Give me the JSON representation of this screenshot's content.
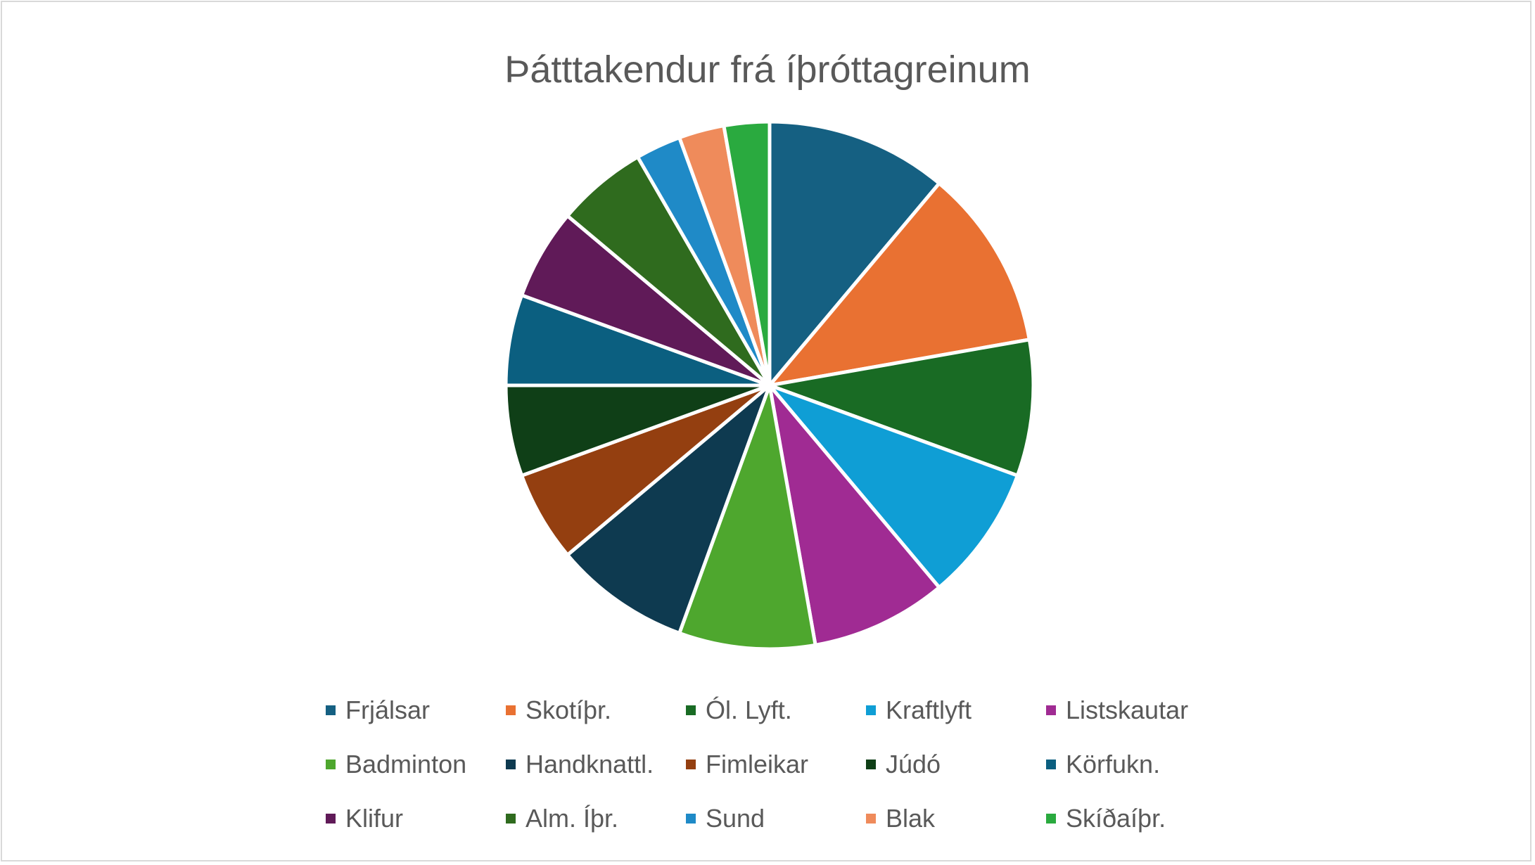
{
  "chart_data": {
    "type": "pie",
    "title": "Þátttakendur frá íþróttagreinum",
    "legend_position": "bottom",
    "categories": [
      "Frjálsar",
      "Skotíþr.",
      "Ól. Lyft.",
      "Kraftlyft",
      "Listskautar",
      "Badminton",
      "Handknattl.",
      "Fimleikar",
      "Júdó",
      "Körfukn.",
      "Klifur",
      "Alm. Íþr.",
      "Sund",
      "Blak",
      "Skíðaíþr."
    ],
    "values": [
      4,
      4,
      3,
      3,
      3,
      3,
      3,
      2,
      2,
      2,
      2,
      2,
      1,
      1,
      1
    ],
    "colors": [
      "#156082",
      "#e97132",
      "#196b24",
      "#0f9ed5",
      "#a02b93",
      "#4ea72e",
      "#0e3a50",
      "#943f10",
      "#0f3f17",
      "#0b5f80",
      "#601a58",
      "#2f6b1e",
      "#1f8ac7",
      "#ef8b5b",
      "#2aaa3f"
    ]
  }
}
